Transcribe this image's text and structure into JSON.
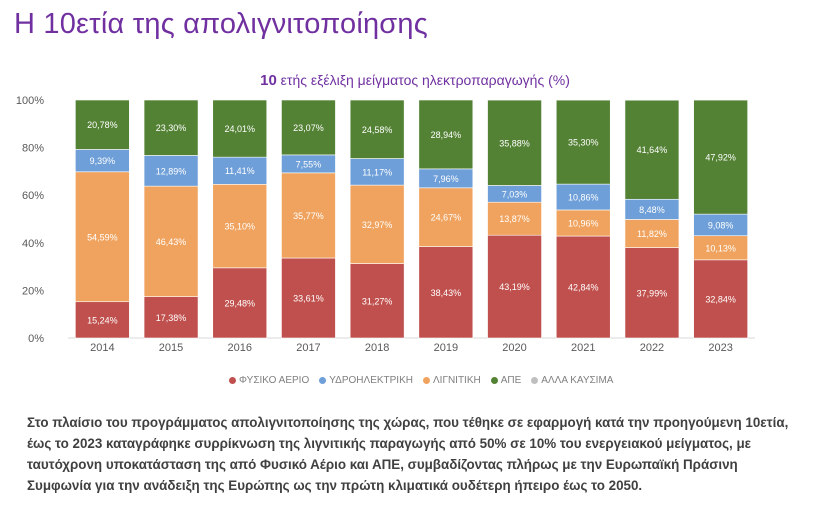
{
  "page_title": "Η 10ετία της απολιγνιτοποίησης",
  "chart_title": {
    "number": "10",
    "text": " ετής εξέλιξη μείγματος ηλεκτροπαραγωγής ",
    "unit": "(%)"
  },
  "legend": [
    {
      "label": "ΦΥΣΙΚΟ ΑΕΡΙΟ",
      "color": "#c0504d"
    },
    {
      "label": "ΥΔΡΟΗΛΕΚΤΡΙΚΗ",
      "color": "#6e9fd8"
    },
    {
      "label": "ΛΙΓΝΙΤΙΚΗ",
      "color": "#f0a35e"
    },
    {
      "label": "ΑΠΕ",
      "color": "#548235"
    },
    {
      "label": "ΑΛΛΑ ΚΑΥΣΙΜΑ",
      "color": "#bfbfbf"
    }
  ],
  "caption": "Στο πλαίσιο του προγράμματος απολιγνιτοποίησης της χώρας, που τέθηκε σε εφαρμογή κατά την προηγούμενη 10ετία, έως το 2023 καταγράφηκε συρρίκνωση της λιγνιτικής παραγωγής από 50% σε 10% του ενεργειακού μείγματος, με ταυτόχρονη υποκατάσταση της από Φυσικό Αέριο και ΑΠΕ, συμβαδίζοντας πλήρως με την Ευρωπαϊκή Πράσινη Συμφωνία για την ανάδειξη της Ευρώπης ως την πρώτη κλιματικά ουδέτερη ήπειρο έως το 2050.",
  "chart_data": {
    "type": "bar",
    "stacked": true,
    "categories": [
      "2014",
      "2015",
      "2016",
      "2017",
      "2018",
      "2019",
      "2020",
      "2021",
      "2022",
      "2023"
    ],
    "ylim": [
      0,
      100
    ],
    "yticks": [
      "0%",
      "20%",
      "40%",
      "60%",
      "80%",
      "100%"
    ],
    "series": [
      {
        "name": "ΦΥΣΙΚΟ ΑΕΡΙΟ",
        "color": "#c0504d",
        "values": [
          15.24,
          17.38,
          29.48,
          33.61,
          31.27,
          38.43,
          43.19,
          42.84,
          37.99,
          32.84
        ],
        "labels": [
          "15,24%",
          "17,38%",
          "29,48%",
          "33,61%",
          "31,27%",
          "38,43%",
          "43,19%",
          "42,84%",
          "37,99%",
          "32,84%"
        ]
      },
      {
        "name": "ΛΙΓΝΙΤΙΚΗ",
        "color": "#f0a35e",
        "values": [
          54.59,
          46.43,
          35.1,
          35.77,
          32.97,
          24.67,
          13.87,
          10.96,
          11.82,
          10.13
        ],
        "labels": [
          "54,59%",
          "46,43%",
          "35,10%",
          "35,77%",
          "32,97%",
          "24,67%",
          "13,87%",
          "10,96%",
          "11,82%",
          "10,13%"
        ]
      },
      {
        "name": "ΥΔΡΟΗΛΕΚΤΡΙΚΗ",
        "color": "#6e9fd8",
        "values": [
          9.39,
          12.89,
          11.41,
          7.55,
          11.17,
          7.96,
          7.03,
          10.86,
          8.48,
          9.08
        ],
        "labels": [
          "9,39%",
          "12,89%",
          "11,41%",
          "7,55%",
          "11,17%",
          "7,96%",
          "7,03%",
          "10,86%",
          "8,48%",
          "9,08%"
        ]
      },
      {
        "name": "ΑΠΕ",
        "color": "#548235",
        "values": [
          20.78,
          23.3,
          24.01,
          23.07,
          24.58,
          28.94,
          35.88,
          35.3,
          41.64,
          47.92
        ],
        "labels": [
          "20,78%",
          "23,30%",
          "24,01%",
          "23,07%",
          "24,58%",
          "28,94%",
          "35,88%",
          "35,30%",
          "41,64%",
          "47,92%"
        ]
      }
    ]
  }
}
